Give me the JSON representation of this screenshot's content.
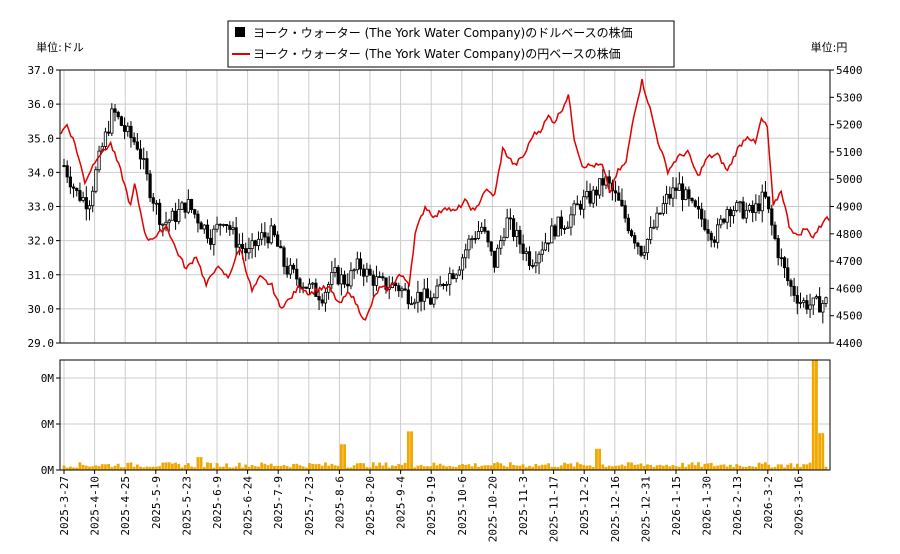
{
  "chart_data": {
    "type": "candlestick+line+bar",
    "title": "",
    "legend": {
      "placement": "top-center",
      "entries": [
        {
          "label": "ヨーク・ウォーター (The York Water Company)のドルベースの株価",
          "color": "#000000",
          "marker": "square"
        },
        {
          "label": "ヨーク・ウォーター (The York Water Company)の円ベースの株価",
          "color": "#e00000",
          "marker": "line"
        }
      ]
    },
    "left_axis": {
      "unit_label": "単位:ドル",
      "range": [
        29.0,
        37.0
      ],
      "ticks": [
        "29.0",
        "30.0",
        "31.0",
        "32.0",
        "33.0",
        "34.0",
        "35.0",
        "36.0",
        "37.0"
      ]
    },
    "right_axis": {
      "unit_label": "単位:円",
      "range": [
        4400,
        5400
      ],
      "ticks": [
        "4400",
        "4500",
        "4600",
        "4700",
        "4800",
        "4900",
        "5000",
        "5100",
        "5200",
        "5300",
        "5400"
      ]
    },
    "volume_axis": {
      "ticks": [
        "0M",
        "0M",
        "0M"
      ]
    },
    "x_labels": [
      "2025-3-27",
      "2025-4-10",
      "2025-4-25",
      "2025-5-9",
      "2025-5-23",
      "2025-6-9",
      "2025-6-24",
      "2025-7-9",
      "2025-7-23",
      "2025-8-6",
      "2025-8-20",
      "2025-9-4",
      "2025-9-19",
      "2025-10-6",
      "2025-10-20",
      "2025-11-3",
      "2025-11-17",
      "2025-12-2",
      "2025-12-16",
      "2025-12-31",
      "2026-1-15",
      "2026-1-30",
      "2026-2-13",
      "2026-3-2",
      "2026-3-16"
    ],
    "usd_close_anchors": [
      [
        0,
        34.2
      ],
      [
        5,
        33.4
      ],
      [
        10,
        33.1
      ],
      [
        15,
        34.6
      ],
      [
        20,
        35.8
      ],
      [
        25,
        35.2
      ],
      [
        30,
        34.8
      ],
      [
        35,
        33.5
      ],
      [
        40,
        32.5
      ],
      [
        45,
        32.7
      ],
      [
        50,
        33.1
      ],
      [
        55,
        32.6
      ],
      [
        60,
        32.1
      ],
      [
        65,
        32.7
      ],
      [
        70,
        32.0
      ],
      [
        75,
        31.6
      ],
      [
        80,
        32.1
      ],
      [
        85,
        32.2
      ],
      [
        90,
        31.2
      ],
      [
        95,
        30.9
      ],
      [
        100,
        30.6
      ],
      [
        105,
        30.4
      ],
      [
        110,
        31.0
      ],
      [
        115,
        30.8
      ],
      [
        120,
        31.3
      ],
      [
        125,
        30.9
      ],
      [
        130,
        30.7
      ],
      [
        135,
        30.7
      ],
      [
        140,
        30.4
      ],
      [
        145,
        30.4
      ],
      [
        150,
        30.2
      ],
      [
        155,
        30.9
      ],
      [
        160,
        31.2
      ],
      [
        165,
        32.0
      ],
      [
        170,
        32.4
      ],
      [
        175,
        31.3
      ],
      [
        180,
        32.6
      ],
      [
        185,
        32.0
      ],
      [
        190,
        31.4
      ],
      [
        195,
        31.9
      ],
      [
        200,
        32.4
      ],
      [
        205,
        32.6
      ],
      [
        210,
        33.1
      ],
      [
        215,
        33.3
      ],
      [
        220,
        33.8
      ],
      [
        225,
        33.2
      ],
      [
        230,
        32.4
      ],
      [
        235,
        31.7
      ],
      [
        240,
        32.4
      ],
      [
        245,
        33.2
      ],
      [
        250,
        33.6
      ],
      [
        255,
        33.0
      ],
      [
        260,
        32.6
      ],
      [
        265,
        32.1
      ],
      [
        270,
        33.0
      ],
      [
        275,
        32.9
      ],
      [
        280,
        32.8
      ],
      [
        285,
        33.3
      ],
      [
        290,
        31.8
      ],
      [
        295,
        30.7
      ],
      [
        300,
        30.2
      ],
      [
        305,
        30.1
      ],
      [
        310,
        30.2
      ]
    ],
    "jpy_close_anchors": [
      [
        0,
        5170
      ],
      [
        3,
        5200
      ],
      [
        7,
        5130
      ],
      [
        12,
        4990
      ],
      [
        18,
        5080
      ],
      [
        25,
        5130
      ],
      [
        30,
        5030
      ],
      [
        35,
        4900
      ],
      [
        37,
        4980
      ],
      [
        43,
        4780
      ],
      [
        48,
        4790
      ],
      [
        53,
        4830
      ],
      [
        58,
        4740
      ],
      [
        63,
        4670
      ],
      [
        68,
        4720
      ],
      [
        73,
        4610
      ],
      [
        78,
        4680
      ],
      [
        84,
        4640
      ],
      [
        90,
        4750
      ],
      [
        96,
        4590
      ],
      [
        100,
        4640
      ],
      [
        106,
        4610
      ],
      [
        110,
        4530
      ],
      [
        115,
        4560
      ],
      [
        120,
        4610
      ],
      [
        125,
        4580
      ],
      [
        130,
        4600
      ],
      [
        135,
        4600
      ],
      [
        140,
        4540
      ],
      [
        145,
        4590
      ],
      [
        150,
        4520
      ],
      [
        153,
        4480
      ],
      [
        157,
        4560
      ],
      [
        160,
        4600
      ],
      [
        165,
        4600
      ],
      [
        170,
        4650
      ],
      [
        175,
        4620
      ],
      [
        178,
        4800
      ],
      [
        183,
        4900
      ],
      [
        188,
        4860
      ],
      [
        193,
        4900
      ],
      [
        198,
        4880
      ],
      [
        203,
        4920
      ],
      [
        208,
        4880
      ],
      [
        213,
        4960
      ],
      [
        218,
        4940
      ],
      [
        222,
        5110
      ],
      [
        228,
        5050
      ],
      [
        233,
        5090
      ],
      [
        237,
        5160
      ],
      [
        241,
        5180
      ],
      [
        245,
        5230
      ],
      [
        248,
        5210
      ],
      [
        252,
        5260
      ],
      [
        255,
        5310
      ],
      [
        258,
        5150
      ],
      [
        262,
        5050
      ],
      [
        267,
        5050
      ],
      [
        272,
        5050
      ],
      [
        276,
        4950
      ],
      [
        280,
        5030
      ],
      [
        284,
        5060
      ],
      [
        288,
        5240
      ],
      [
        292,
        5360
      ],
      [
        296,
        5260
      ],
      [
        300,
        5140
      ],
      [
        305,
        5030
      ],
      [
        310,
        5080
      ],
      [
        315,
        5100
      ],
      [
        320,
        5010
      ],
      [
        325,
        5080
      ],
      [
        330,
        5090
      ],
      [
        335,
        5030
      ],
      [
        340,
        5110
      ],
      [
        345,
        5160
      ],
      [
        349,
        5130
      ],
      [
        352,
        5220
      ],
      [
        355,
        5190
      ],
      [
        358,
        4900
      ],
      [
        362,
        4960
      ],
      [
        366,
        4830
      ],
      [
        370,
        4790
      ],
      [
        374,
        4820
      ],
      [
        378,
        4790
      ],
      [
        382,
        4830
      ],
      [
        384,
        4860
      ],
      [
        386,
        4850
      ]
    ],
    "volume_spikes": [
      [
        65,
        0.28
      ],
      [
        133,
        0.56
      ],
      [
        164,
        0.84
      ],
      [
        253,
        0.46
      ],
      [
        357,
        2.5
      ],
      [
        359,
        0.8
      ]
    ]
  }
}
